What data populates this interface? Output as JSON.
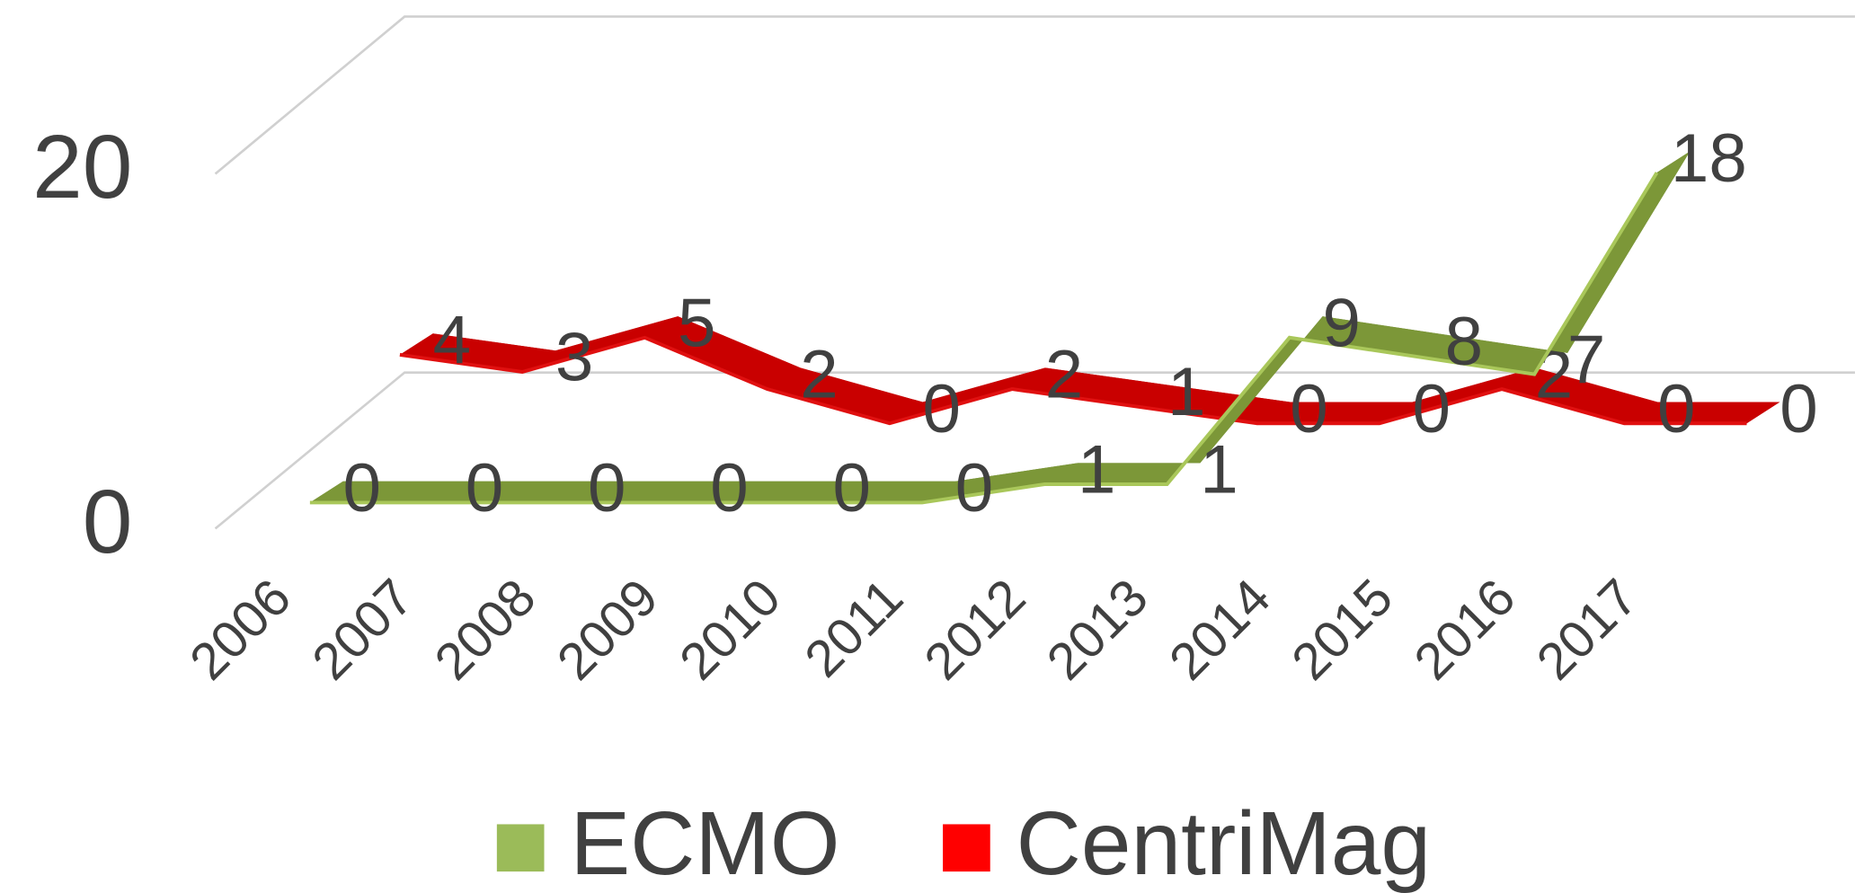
{
  "chart_data": {
    "type": "line",
    "categories": [
      "2006",
      "2007",
      "2008",
      "2009",
      "2010",
      "2011",
      "2012",
      "2013",
      "2014",
      "2015",
      "2016",
      "2017"
    ],
    "series": [
      {
        "name": "ECMO",
        "color": "#9bbb59",
        "values": [
          0,
          0,
          0,
          0,
          0,
          0,
          1,
          1,
          9,
          8,
          7,
          18
        ]
      },
      {
        "name": "CentriMag",
        "color": "#ff0000",
        "values": [
          4,
          3,
          5,
          2,
          0,
          2,
          1,
          0,
          0,
          2,
          0,
          0
        ]
      }
    ],
    "ylim": [
      0,
      20
    ],
    "yticks": [
      0,
      20
    ],
    "grid": true,
    "legend": "bottom"
  }
}
